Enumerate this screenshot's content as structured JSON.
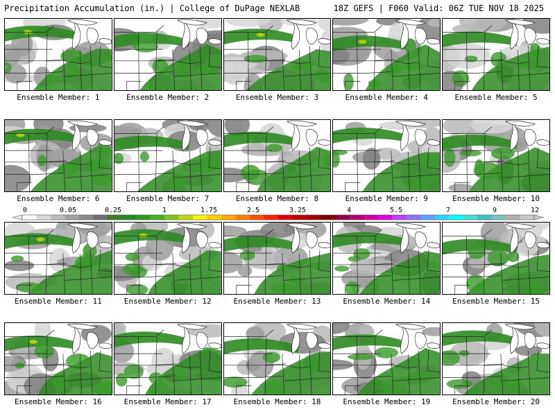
{
  "header": {
    "left": "Precipitation Accumulation (in.) | College of DuPage NEXLAB",
    "right": "18Z GEFS | F060 Valid: 06Z TUE NOV 18 2025"
  },
  "colorbar": {
    "labels": [
      "0",
      "0.05",
      "0.25",
      "1",
      "1.75",
      "2.5",
      "3.25",
      "4",
      "5.5",
      "7",
      "9",
      "12"
    ],
    "colors": [
      "#ffffff",
      "#d9d9d9",
      "#bdbdbd",
      "#a3a3a3",
      "#8a8a8a",
      "#6e6e6e",
      "#3d7d2a",
      "#228b22",
      "#2e9a22",
      "#45b020",
      "#7fc21a",
      "#c0d80e",
      "#f5f500",
      "#ffd000",
      "#ffaa00",
      "#ff8000",
      "#ff5000",
      "#ff2000",
      "#e00000",
      "#c00000",
      "#a00000",
      "#800000",
      "#900040",
      "#b00070",
      "#d000a0",
      "#e000e0",
      "#c040ff",
      "#9070ff",
      "#60a0ff",
      "#30d0ff",
      "#00ffff",
      "#40e0d0",
      "#40c0c0",
      "#80c0c0",
      "#b0b0b0",
      "#c8c8c8"
    ]
  },
  "members": [
    {
      "label": "Ensemble Member: 1"
    },
    {
      "label": "Ensemble Member: 2"
    },
    {
      "label": "Ensemble Member: 3"
    },
    {
      "label": "Ensemble Member: 4"
    },
    {
      "label": "Ensemble Member: 5"
    },
    {
      "label": "Ensemble Member: 6"
    },
    {
      "label": "Ensemble Member: 7"
    },
    {
      "label": "Ensemble Member: 8"
    },
    {
      "label": "Ensemble Member: 9"
    },
    {
      "label": "Ensemble Member: 10"
    },
    {
      "label": "Ensemble Member: 11"
    },
    {
      "label": "Ensemble Member: 12"
    },
    {
      "label": "Ensemble Member: 13"
    },
    {
      "label": "Ensemble Member: 14"
    },
    {
      "label": "Ensemble Member: 15"
    },
    {
      "label": "Ensemble Member: 16"
    },
    {
      "label": "Ensemble Member: 17"
    },
    {
      "label": "Ensemble Member: 18"
    },
    {
      "label": "Ensemble Member: 19"
    },
    {
      "label": "Ensemble Member: 20"
    }
  ]
}
